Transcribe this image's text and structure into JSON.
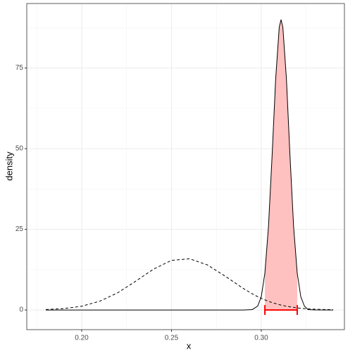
{
  "chart_data": {
    "type": "density",
    "x_label": "x",
    "y_label": "density",
    "x": [
      0.18,
      0.19,
      0.2,
      0.21,
      0.22,
      0.23,
      0.24,
      0.25,
      0.26,
      0.27,
      0.28,
      0.29,
      0.295,
      0.298,
      0.3,
      0.302,
      0.304,
      0.306,
      0.308,
      0.31,
      0.311,
      0.312,
      0.314,
      0.316,
      0.318,
      0.32,
      0.322,
      0.324,
      0.326,
      0.33,
      0.34
    ],
    "series": [
      {
        "color": "#000000",
        "dashed": false,
        "values": [
          0,
          0,
          0,
          0,
          0,
          0,
          0,
          0,
          0,
          0,
          0,
          0,
          0.13,
          1.21,
          4.12,
          11.44,
          25.84,
          47.6,
          71.6,
          87.7,
          90,
          87.7,
          71.6,
          47.6,
          25.84,
          11.44,
          4.12,
          1.21,
          0.13,
          0.01,
          0
        ]
      },
      {
        "color": "#000000",
        "dashed": true,
        "values": [
          0.13,
          0.43,
          1.16,
          2.7,
          5.31,
          8.89,
          12.67,
          15.38,
          15.88,
          13.96,
          10.44,
          6.65,
          5.0,
          4.12,
          3.61,
          3.13,
          2.69,
          2.31,
          1.97,
          1.66,
          1.52,
          1.4,
          1.16,
          0.97,
          0.8,
          0.65,
          0.53,
          0.43,
          0.34,
          0.22,
          0.08
        ]
      }
    ],
    "shade": {
      "series": 0,
      "color": "#ffc0c0",
      "low": 0.302,
      "high": 0.32
    },
    "interval": {
      "low": 0.302,
      "high": 0.32,
      "y": 0,
      "color": "#ff0000"
    },
    "xlim": [
      0.1694,
      0.3463
    ],
    "ylim": [
      -6.1,
      95.0
    ],
    "xticks": [
      {
        "value": 0.2,
        "label": "0.20"
      },
      0.25,
      {
        "value": 0.3,
        "label": "0.30"
      }
    ],
    "yticks": [
      0,
      25,
      50,
      75
    ],
    "minor_xticks": [
      0.175,
      0.225,
      0.275,
      0.325
    ],
    "minor_yticks": [
      12.5,
      37.5,
      62.5,
      87.5
    ],
    "grid": true
  }
}
